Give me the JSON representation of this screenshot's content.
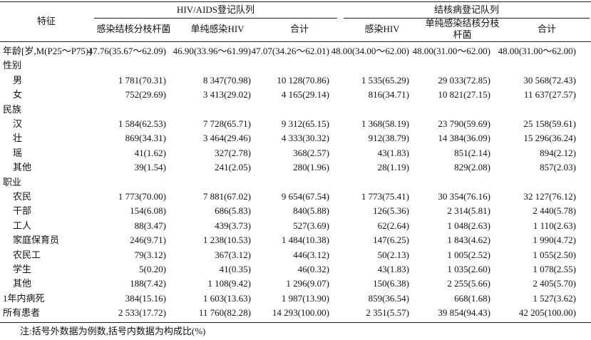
{
  "header": {
    "feature": "特征",
    "groups": [
      {
        "title": "HIV/AIDS登记队列",
        "columns": [
          "感染结核分枝杆菌",
          "单纯感染HIV",
          "合计"
        ]
      },
      {
        "title": "结核病登记队列",
        "columns": [
          "感染HIV",
          "单纯感染结核分枝杆菌",
          "合计"
        ]
      }
    ]
  },
  "table": {
    "rows": [
      {
        "label": "年龄[岁,M(P25～P75)]",
        "cells": [
          "47.76(35.67～62.09)",
          "46.90(33.96～61.99)",
          "47.07(34.26～62.01)",
          "48.00(34.00～62.00)",
          "48.00(31.00～62.00)",
          "48.00(31.00～62.00)"
        ]
      },
      {
        "label": "性别",
        "items": [
          {
            "label": "男",
            "cells": [
              "1 781(70.31)",
              "8 347(70.98)",
              "10 128(70.86)",
              "1 535(65.29)",
              "29 033(72.85)",
              "30 568(72.43)"
            ]
          },
          {
            "label": "女",
            "cells": [
              "752(29.69)",
              "3 413(29.02)",
              "4 165(29.14)",
              "816(34.71)",
              "10 821(27.15)",
              "11 637(27.57)"
            ]
          }
        ]
      },
      {
        "label": "民族",
        "items": [
          {
            "label": "汉",
            "cells": [
              "1 584(62.53)",
              "7 728(65.71)",
              "9 312(65.15)",
              "1 368(58.19)",
              "23 790(59.69)",
              "25 158(59.61)"
            ]
          },
          {
            "label": "壮",
            "cells": [
              "869(34.31)",
              "3 464(29.46)",
              "4 333(30.32)",
              "912(38.79)",
              "14 384(36.09)",
              "15 296(36.24)"
            ]
          },
          {
            "label": "瑶",
            "cells": [
              "41(1.62)",
              "327(2.78)",
              "368(2.57)",
              "43(1.83)",
              "851(2.14)",
              "894(2.12)"
            ]
          },
          {
            "label": "其他",
            "cells": [
              "39(1.54)",
              "241(2.05)",
              "280(1.96)",
              "28(1.19)",
              "829(2.08)",
              "857(2.03)"
            ]
          }
        ]
      },
      {
        "label": "职业",
        "items": [
          {
            "label": "农民",
            "cells": [
              "1 773(70.00)",
              "7 881(67.02)",
              "9 654(67.54)",
              "1 773(75.41)",
              "30 354(76.16)",
              "32 127(76.12)"
            ]
          },
          {
            "label": "干部",
            "cells": [
              "154(6.08)",
              "686(5.83)",
              "840(5.88)",
              "126(5.36)",
              "2 314(5.81)",
              "2 440(5.78)"
            ]
          },
          {
            "label": "工人",
            "cells": [
              "88(3.47)",
              "439(3.73)",
              "527(3.69)",
              "62(2.64)",
              "1 048(2.63)",
              "1 110(2.63)"
            ]
          },
          {
            "label": "家庭保育员",
            "cells": [
              "246(9.71)",
              "1 238(10.53)",
              "1 484(10.38)",
              "147(6.25)",
              "1 843(4.62)",
              "1 990(4.72)"
            ]
          },
          {
            "label": "农民工",
            "cells": [
              "79(3.12)",
              "367(3.12)",
              "446(3.12)",
              "50(2.13)",
              "1 005(2.52)",
              "1 055(2.50)"
            ]
          },
          {
            "label": "学生",
            "cells": [
              "5(0.20)",
              "41(0.35)",
              "46(0.32)",
              "43(1.83)",
              "1 035(2.60)",
              "1 078(2.55)"
            ]
          },
          {
            "label": "其他",
            "cells": [
              "188(7.42)",
              "1 108(9.42)",
              "1 296(9.07)",
              "150(6.38)",
              "2 255(5.66)",
              "2 405(5.70)"
            ]
          }
        ]
      },
      {
        "label": "1年内病死",
        "cells": [
          "384(15.16)",
          "1 603(13.63)",
          "1 987(13.90)",
          "859(36.54)",
          "668(1.68)",
          "1 527(3.62)"
        ]
      },
      {
        "label": "所有患者",
        "cells": [
          "2 533(17.72)",
          "11 760(82.28)",
          "14 293(100.00)",
          "2 351(5.57)",
          "39 854(94.43)",
          "42 205(100.00)"
        ]
      }
    ]
  },
  "note": "注:括号外数据为例数,括号内数据为构成比(%)"
}
